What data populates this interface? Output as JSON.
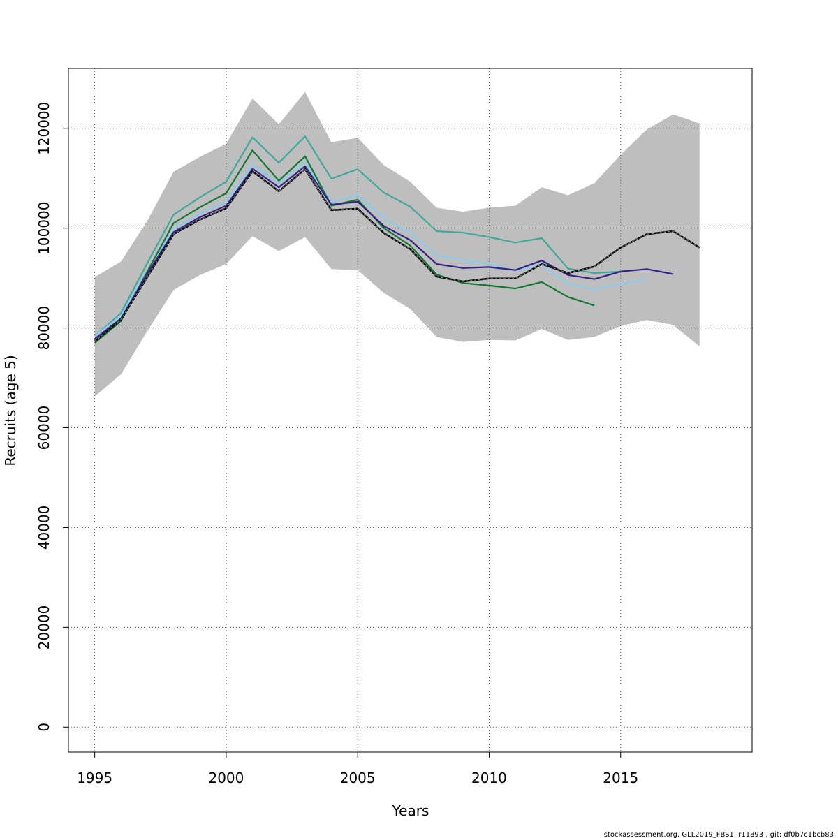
{
  "chart_data": {
    "type": "line",
    "title": "",
    "xlabel": "Years",
    "ylabel": "Recruits (age 5)",
    "xlim": [
      1994,
      2020
    ],
    "ylim": [
      -5000,
      132000
    ],
    "x_ticks": [
      "1995",
      "2000",
      "2005",
      "2010",
      "2015"
    ],
    "y_ticks": [
      "0",
      "20000",
      "40000",
      "60000",
      "80000",
      "100000",
      "120000"
    ],
    "grid": true,
    "legend": "none",
    "confidence_band": {
      "x": [
        1995,
        1996,
        1997,
        1998,
        1999,
        2000,
        2001,
        2002,
        2003,
        2004,
        2005,
        2006,
        2007,
        2008,
        2009,
        2010,
        2011,
        2012,
        2013,
        2014,
        2015,
        2016,
        2017,
        2018
      ],
      "upper": [
        90200,
        93300,
        101500,
        111300,
        114300,
        116900,
        126000,
        120800,
        127300,
        117200,
        118100,
        112600,
        109300,
        104100,
        103300,
        104100,
        104500,
        108200,
        106600,
        109000,
        114700,
        119800,
        122800,
        121000
      ],
      "lower": [
        66300,
        70700,
        79400,
        87600,
        90600,
        92800,
        98400,
        95400,
        98200,
        91800,
        91600,
        87000,
        83800,
        78200,
        77200,
        77600,
        77500,
        79800,
        77600,
        78200,
        80400,
        81600,
        80600,
        76300
      ]
    },
    "series": [
      {
        "color": "#3fa89a",
        "x": [
          1995,
          1996,
          1997,
          1998,
          1999,
          2000,
          2001,
          2002,
          2003,
          2004,
          2005,
          2006,
          2007,
          2008,
          2009,
          2010,
          2011,
          2012,
          2013,
          2014,
          2015
        ],
        "values": [
          78300,
          83000,
          93000,
          102700,
          106200,
          109300,
          118200,
          113100,
          118400,
          109900,
          111800,
          107100,
          104300,
          99400,
          99100,
          98200,
          97100,
          98000,
          91900,
          91000,
          91300
        ]
      },
      {
        "color": "#88ccee",
        "x": [
          1995,
          1996,
          1997,
          1998,
          1999,
          2000,
          2001,
          2002,
          2003,
          2004,
          2005,
          2006,
          2007,
          2008,
          2009,
          2010,
          2011,
          2012,
          2013,
          2014,
          2015,
          2016
        ],
        "values": [
          78300,
          82500,
          91500,
          99800,
          103000,
          105300,
          112800,
          109000,
          113200,
          105200,
          106700,
          101900,
          99100,
          94600,
          93600,
          92800,
          91500,
          92600,
          88800,
          87800,
          88800,
          89700
        ]
      },
      {
        "color": "#117733",
        "x": [
          1995,
          1996,
          1997,
          1998,
          1999,
          2000,
          2001,
          2002,
          2003,
          2004,
          2005,
          2006,
          2007,
          2008,
          2009,
          2010,
          2011,
          2012,
          2013,
          2014
        ],
        "values": [
          77000,
          81400,
          91300,
          101000,
          104200,
          107000,
          115600,
          109500,
          114400,
          104500,
          105700,
          100000,
          96500,
          90700,
          89000,
          88500,
          87900,
          89200,
          86200,
          84500
        ]
      },
      {
        "color": "#332288",
        "x": [
          1995,
          1996,
          1997,
          1998,
          1999,
          2000,
          2001,
          2002,
          2003,
          2004,
          2005,
          2006,
          2007,
          2008,
          2009,
          2010,
          2011,
          2012,
          2013,
          2014,
          2015,
          2016,
          2017
        ],
        "values": [
          77800,
          81900,
          90900,
          99200,
          102200,
          104500,
          111900,
          108200,
          112400,
          104700,
          105300,
          100400,
          97600,
          92800,
          92000,
          92200,
          91600,
          93500,
          90600,
          89800,
          91300,
          91800,
          90800
        ]
      },
      {
        "color": "#000000",
        "dashed": true,
        "x": [
          1995,
          1996,
          1997,
          1998,
          1999,
          2000,
          2001,
          2002,
          2003,
          2004,
          2005,
          2006,
          2007,
          2008,
          2009,
          2010,
          2011,
          2012,
          2013,
          2014,
          2015,
          2016,
          2017,
          2018
        ],
        "values": [
          77300,
          81700,
          90200,
          98800,
          101700,
          104000,
          111400,
          107400,
          111800,
          103600,
          103900,
          99000,
          95800,
          90300,
          89300,
          89900,
          89900,
          92800,
          91000,
          92300,
          96100,
          98800,
          99400,
          96100
        ]
      }
    ]
  },
  "footer": "stockassessment.org, GLL2019_FBS1, r11893 , git: df0b7c1bcb83"
}
